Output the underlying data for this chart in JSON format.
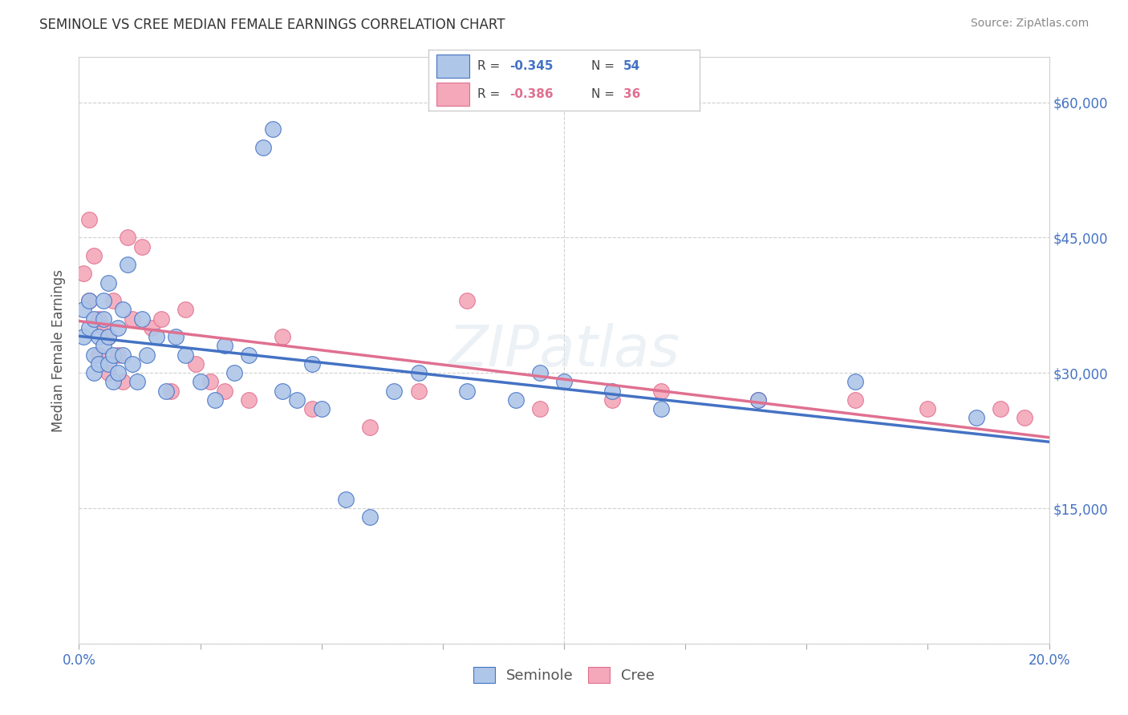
{
  "title": "SEMINOLE VS CREE MEDIAN FEMALE EARNINGS CORRELATION CHART",
  "source": "Source: ZipAtlas.com",
  "ylabel": "Median Female Earnings",
  "yticks": [
    0,
    15000,
    30000,
    45000,
    60000
  ],
  "ytick_labels": [
    "",
    "$15,000",
    "$30,000",
    "$45,000",
    "$60,000"
  ],
  "xlim": [
    0.0,
    0.2
  ],
  "ylim": [
    0,
    65000
  ],
  "watermark": "ZIPatlas",
  "r_blue": "-0.345",
  "n_blue": "54",
  "r_pink": "-0.386",
  "n_pink": "36",
  "seminole_color": "#aec6e8",
  "cree_color": "#f4a8ba",
  "line_blue": "#4472c4",
  "line_pink": "#e07090",
  "background_color": "#ffffff",
  "grid_color": "#d0d0d0",
  "seminole_x": [
    0.001,
    0.001,
    0.002,
    0.002,
    0.003,
    0.003,
    0.003,
    0.004,
    0.004,
    0.005,
    0.005,
    0.005,
    0.006,
    0.006,
    0.006,
    0.007,
    0.007,
    0.008,
    0.008,
    0.009,
    0.009,
    0.01,
    0.011,
    0.012,
    0.013,
    0.014,
    0.016,
    0.018,
    0.02,
    0.022,
    0.025,
    0.028,
    0.03,
    0.032,
    0.035,
    0.038,
    0.04,
    0.042,
    0.045,
    0.048,
    0.05,
    0.055,
    0.06,
    0.065,
    0.07,
    0.08,
    0.09,
    0.095,
    0.1,
    0.11,
    0.12,
    0.14,
    0.16,
    0.185
  ],
  "seminole_y": [
    37000,
    34000,
    38000,
    35000,
    36000,
    32000,
    30000,
    34000,
    31000,
    33000,
    36000,
    38000,
    31000,
    34000,
    40000,
    29000,
    32000,
    30000,
    35000,
    32000,
    37000,
    42000,
    31000,
    29000,
    36000,
    32000,
    34000,
    28000,
    34000,
    32000,
    29000,
    27000,
    33000,
    30000,
    32000,
    55000,
    57000,
    28000,
    27000,
    31000,
    26000,
    16000,
    14000,
    28000,
    30000,
    28000,
    27000,
    30000,
    29000,
    28000,
    26000,
    27000,
    29000,
    25000
  ],
  "cree_x": [
    0.001,
    0.002,
    0.002,
    0.003,
    0.004,
    0.004,
    0.005,
    0.006,
    0.006,
    0.007,
    0.008,
    0.009,
    0.01,
    0.011,
    0.013,
    0.015,
    0.017,
    0.019,
    0.022,
    0.024,
    0.027,
    0.03,
    0.035,
    0.042,
    0.048,
    0.06,
    0.07,
    0.08,
    0.095,
    0.11,
    0.12,
    0.14,
    0.16,
    0.175,
    0.19,
    0.195
  ],
  "cree_y": [
    41000,
    47000,
    38000,
    43000,
    36000,
    32000,
    35000,
    34000,
    30000,
    38000,
    32000,
    29000,
    45000,
    36000,
    44000,
    35000,
    36000,
    28000,
    37000,
    31000,
    29000,
    28000,
    27000,
    34000,
    26000,
    24000,
    28000,
    38000,
    26000,
    27000,
    28000,
    27000,
    27000,
    26000,
    26000,
    25000
  ]
}
